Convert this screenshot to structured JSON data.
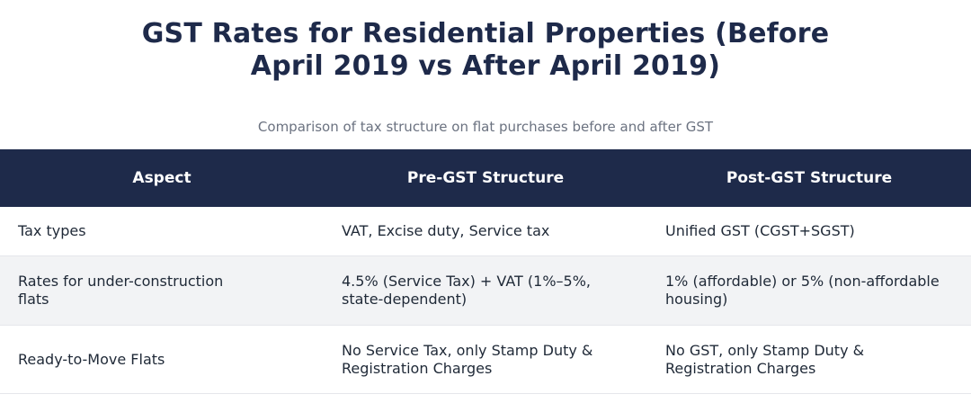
{
  "title_line1": "GST Rates for Residential Properties (Before",
  "title_line2": "April 2019 vs After April 2019)",
  "subtitle": "Comparison of tax structure on flat purchases before and after GST",
  "table": {
    "headers": [
      "Aspect",
      "Pre-GST Structure",
      "Post-GST Structure"
    ],
    "rows": [
      [
        "Tax types",
        "VAT, Excise duty, Service tax",
        "Unified GST (CGST+SGST)"
      ],
      [
        "Rates for under-construction flats",
        "4.5% (Service Tax) + VAT (1%–5%, state-dependent)",
        "1% (affordable) or 5% (non-affordable housing)"
      ],
      [
        "Ready-to-Move Flats",
        "No Service Tax, only Stamp Duty & Registration Charges",
        "No GST, only Stamp Duty & Registration Charges"
      ]
    ]
  },
  "colors": {
    "header_bg": "#1e2a4a",
    "title": "#1e2a4a",
    "alt_row_bg": "#f2f3f5",
    "subtitle": "#6b7280"
  }
}
